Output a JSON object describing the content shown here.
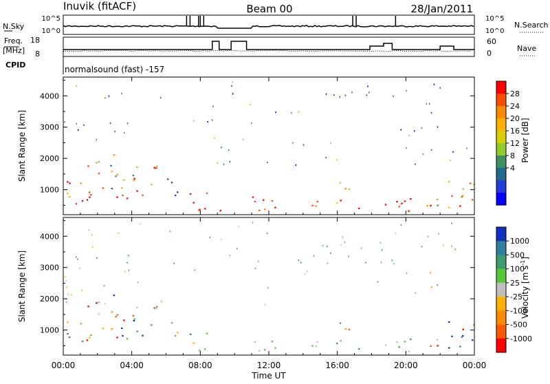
{
  "header": {
    "station": "Inuvik (fitACF)",
    "beam": "Beam 00",
    "date": "28/Jan/2011"
  },
  "status_panel": {
    "left_top_label": "N.Sky",
    "nsky_ticks": [
      "10^5",
      "10^0"
    ],
    "right_top_label": "N.Search",
    "right_nsearch_ticks": [
      "10^5",
      "10^0"
    ],
    "freq_label_1": "Freq.",
    "freq_label_2": "[MHz]",
    "freq_ticks": [
      "18",
      "8"
    ],
    "nave_label": "Nave",
    "nave_ticks": [
      "60",
      "0"
    ],
    "cpid_label": "CPID",
    "cpid_text": "normalsound (fast) -157"
  },
  "chart_data": [
    {
      "type": "heatmap",
      "name": "power",
      "ylabel": "Slant Range [km]",
      "yticks": [
        "1000",
        "2000",
        "3000",
        "4000"
      ],
      "ylim": [
        200,
        4600
      ],
      "xlim_hours": [
        0,
        24
      ],
      "colorbar": {
        "label": "Power [dB]",
        "ticks": [
          "28",
          "24",
          "20",
          "16",
          "12",
          "8",
          "4"
        ],
        "colors": [
          "#ff0000",
          "#ff4a00",
          "#ff8c00",
          "#ffb000",
          "#d8d000",
          "#8fcc2a",
          "#3f8f60",
          "#226b8f",
          "#1d3fd8",
          "#0000ff"
        ]
      }
    },
    {
      "type": "heatmap",
      "name": "velocity",
      "ylabel": "Slant Range [km]",
      "yticks": [
        "1000",
        "2000",
        "3000",
        "4000"
      ],
      "ylim": [
        200,
        4600
      ],
      "xlim_hours": [
        0,
        24
      ],
      "colorbar": {
        "label": "Velocity [m s-1]",
        "label_main": "Velocity [m s",
        "label_sup": "-1",
        "label_end": "]",
        "ticks": [
          "1000",
          "500",
          "100",
          "25",
          "-25",
          "-100",
          "-500",
          "-1000"
        ],
        "colors": [
          "#1030c0",
          "#2f7fa0",
          "#3d9c6a",
          "#55c83a",
          "#bfbfbf",
          "#ffb000",
          "#ff8c00",
          "#ff5a00",
          "#ff0000"
        ]
      }
    }
  ],
  "xaxis": {
    "ticks": [
      "00:00",
      "04:00",
      "08:00",
      "12:00",
      "16:00",
      "20:00",
      "00:00"
    ],
    "label": "Time UT"
  }
}
